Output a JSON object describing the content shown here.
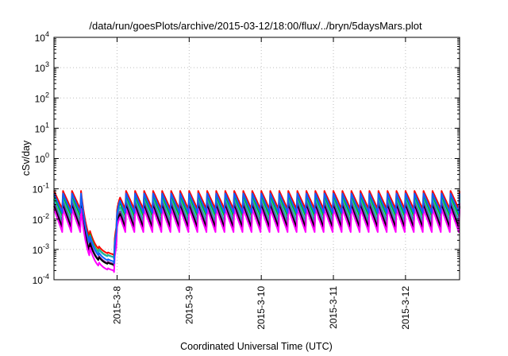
{
  "chart_data": {
    "type": "line",
    "title": "/data/run/goesPlots/archive/2015-03-12/18:00/flux/../bryn/5daysMars.plot",
    "xlabel": "Coordinated Universal Time (UTC)",
    "ylabel": "cSv/day",
    "yscale": "log",
    "ylim": [
      0.0001,
      10000
    ],
    "xlim": [
      "2015-03-07 03:00",
      "2015-03-12 18:00"
    ],
    "grid": true,
    "legend": "none",
    "x_ticks": [
      "2015-3-8",
      "2015-3-9",
      "2015-3-10",
      "2015-3-11",
      "2015-3-12"
    ],
    "y_ticks": [
      {
        "base": "10",
        "exp": "-4"
      },
      {
        "base": "10",
        "exp": "-3"
      },
      {
        "base": "10",
        "exp": "-2"
      },
      {
        "base": "10",
        "exp": "-1"
      },
      {
        "base": "10",
        "exp": "0"
      },
      {
        "base": "10",
        "exp": "1"
      },
      {
        "base": "10",
        "exp": "2"
      },
      {
        "base": "10",
        "exp": "3"
      },
      {
        "base": "10",
        "exp": "4"
      }
    ],
    "pattern": {
      "period_hours": 3,
      "dip_start": "2015-03-07 12:00",
      "dip_end": "2015-03-07 23:00",
      "recover_end": "2015-03-08 01:00"
    },
    "series": [
      {
        "color": "#ff0000",
        "peak": 0.085,
        "trough": 0.019,
        "dip_min": 0.0006
      },
      {
        "color": "#00c000",
        "peak": 0.06,
        "trough": 0.011,
        "dip_min": 0.0005
      },
      {
        "color": "#20b0b0",
        "peak": 0.045,
        "trough": 0.0075,
        "dip_min": 0.0005
      },
      {
        "color": "#8020a0",
        "peak": 0.034,
        "trough": 0.005,
        "dip_min": 0.0003
      },
      {
        "color": "#000000",
        "peak": 0.027,
        "trough": 0.0045,
        "dip_min": 0.00028
      },
      {
        "color": "#ff00ff",
        "peak": 0.022,
        "trough": 0.0032,
        "dip_min": 0.00018
      },
      {
        "color": "#1060ff",
        "peak": 0.07,
        "trough": 0.014,
        "dip_min": 0.00035
      }
    ]
  }
}
